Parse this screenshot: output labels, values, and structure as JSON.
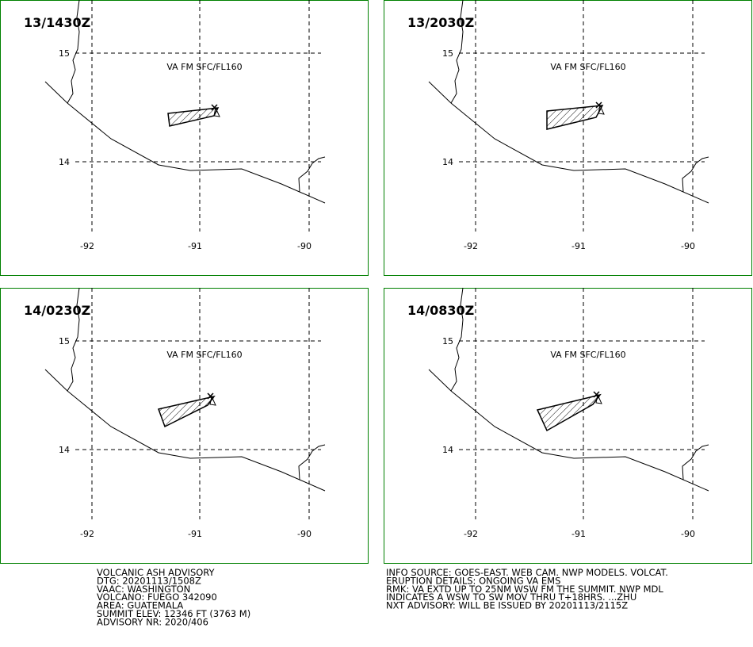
{
  "panels": [
    {
      "time": "13/1430Z",
      "label": "VA FM SFC/FL160",
      "lat_labels": [
        "15",
        "14"
      ],
      "lon_labels": [
        "-92",
        "-91",
        "-90"
      ]
    },
    {
      "time": "13/2030Z",
      "label": "VA FM SFC/FL160",
      "lat_labels": [
        "15",
        "14"
      ],
      "lon_labels": [
        "-92",
        "-91",
        "-90"
      ]
    },
    {
      "time": "14/0230Z",
      "label": "VA FM SFC/FL160",
      "lat_labels": [
        "15",
        "14"
      ],
      "lon_labels": [
        "-92",
        "-91",
        "-90"
      ]
    },
    {
      "time": "14/0830Z",
      "label": "VA FM SFC/FL160",
      "lat_labels": [
        "15",
        "14"
      ],
      "lon_labels": [
        "-92",
        "-91",
        "-90"
      ]
    }
  ],
  "advisory_left": [
    "VOLCANIC ASH ADVISORY",
    "DTG: 20201113/1508Z",
    "VAAC: WASHINGTON",
    "VOLCANO: FUEGO 342090",
    "AREA: GUATEMALA",
    "SUMMIT ELEV: 12346 FT (3763 M)",
    "ADVISORY NR: 2020/406"
  ],
  "advisory_right": [
    "INFO SOURCE: GOES-EAST. WEB CAM. NWP MODELS. VOLCAT.",
    "ERUPTION DETAILS: ONGOING VA EMS",
    "RMK: VA EXTD UP TO 25NM WSW FM THE SUMMIT. NWP MDL",
    "INDICATES A WSW TO SW MOV THRU T+18HRS. ...ZHU",
    "NXT ADVISORY: WILL BE ISSUED BY 20201113/2115Z"
  ]
}
